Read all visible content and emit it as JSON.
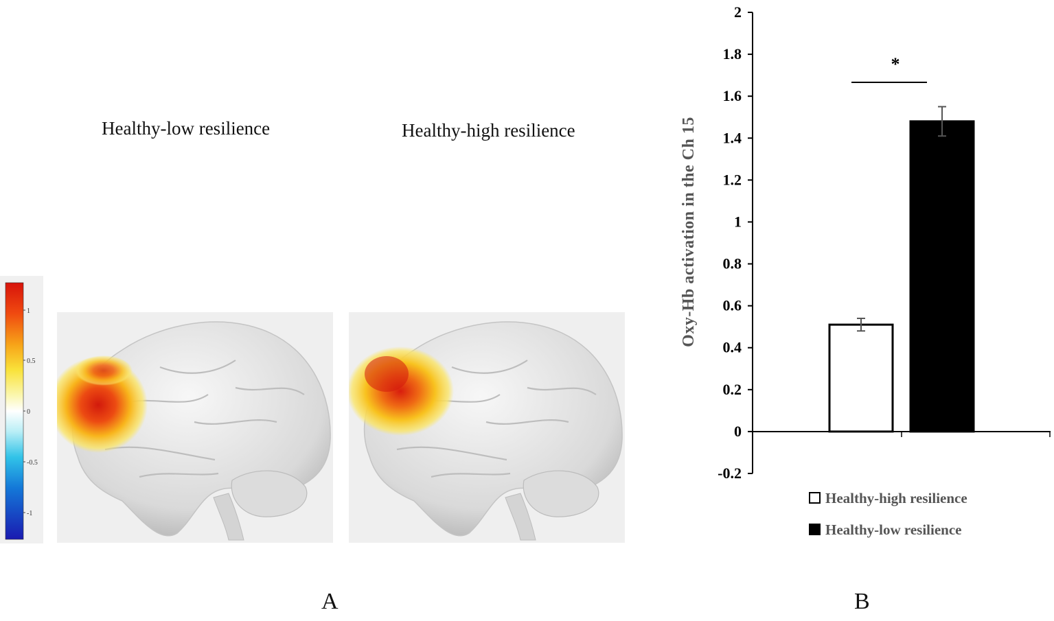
{
  "panel_a": {
    "label": "A",
    "left_title": "Healthy-low resilience",
    "right_title": "Healthy-high resilience",
    "colorbar_ticks": [
      "1",
      "0.5",
      "0",
      "-0.5",
      "-1"
    ]
  },
  "panel_b": {
    "label": "B"
  },
  "chart_data": {
    "type": "bar",
    "categories": [
      "Healthy-high resilience",
      "Healthy-low resilience"
    ],
    "series": [
      {
        "name": "Healthy-high resilience",
        "value": 0.51,
        "error": 0.03,
        "fill": "#ffffff"
      },
      {
        "name": "Healthy-low resilience",
        "value": 1.48,
        "error": 0.07,
        "fill": "#000000"
      }
    ],
    "ylabel": "Oxy-Hb activation in the Ch 15",
    "xlabel": "",
    "ylim": [
      -0.2,
      2
    ],
    "yticks": [
      -0.2,
      0,
      0.2,
      0.4,
      0.6,
      0.8,
      1,
      1.2,
      1.4,
      1.6,
      1.8,
      2
    ],
    "ytick_labels": [
      "-0.2",
      "0",
      "0.2",
      "0.4",
      "0.6",
      "0.8",
      "1",
      "1.2",
      "1.4",
      "1.6",
      "1.8",
      "2"
    ],
    "significance_marker": "*",
    "legend_position": "bottom",
    "grid": false
  }
}
